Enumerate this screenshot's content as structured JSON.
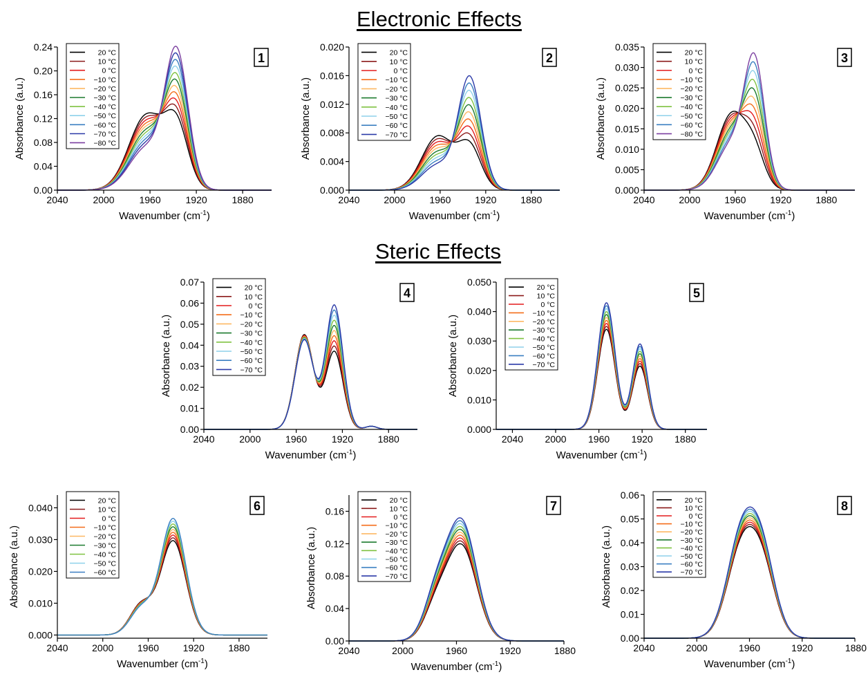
{
  "sections": {
    "electronic": "Electronic Effects",
    "steric": "Steric Effects"
  },
  "temperature_colors": {
    "20 °C": "#000000",
    "10 °C": "#8b1a1a",
    "0 °C": "#e31a1c",
    "−10 °C": "#f46d1a",
    "−20 °C": "#fdb863",
    "−30 °C": "#1b7a2e",
    "−40 °C": "#7fc241",
    "−50 °C": "#8ed1ea",
    "−60 °C": "#3a7fc1",
    "−70 °C": "#2b3aa8",
    "−80 °C": "#7b3fa0"
  },
  "chart_data": [
    {
      "id": "1",
      "type": "line",
      "panel_label": "1",
      "xlabel": "Wavenumber (cm",
      "xlabel_sup": "-1",
      "ylabel": "Absorbance (a.u.)",
      "xlim": [
        2040,
        1855
      ],
      "ylim": [
        0,
        0.24
      ],
      "xticks": [
        2040,
        2000,
        1960,
        1920,
        1880
      ],
      "xtick_labels": [
        "2040",
        "2000",
        "1960",
        "1920",
        "1880"
      ],
      "yticks": [
        0,
        0.04,
        0.08,
        0.12,
        0.16,
        0.2,
        0.24
      ],
      "ytick_labels": [
        "0.00",
        "0.04",
        "0.08",
        "0.12",
        "0.16",
        "0.20",
        "0.24"
      ],
      "series_names": [
        "20 °C",
        "10 °C",
        "0 °C",
        "−10 °C",
        "−20 °C",
        "−30 °C",
        "−40 °C",
        "−50 °C",
        "−60 °C",
        "−70 °C",
        "−80 °C"
      ],
      "peaks": [
        {
          "center": 1963,
          "width": 15,
          "from": 0.125,
          "to": 0.07
        },
        {
          "center": 1937,
          "width": 10,
          "from": 0.1,
          "to": 0.225
        }
      ]
    },
    {
      "id": "2",
      "type": "line",
      "panel_label": "2",
      "xlabel": "Wavenumber (cm",
      "xlabel_sup": "-1",
      "ylabel": "Absorbance (a.u.)",
      "xlim": [
        2040,
        1855
      ],
      "ylim": [
        0,
        0.02
      ],
      "xticks": [
        2040,
        2000,
        1960,
        1920,
        1880
      ],
      "xtick_labels": [
        "2040",
        "2000",
        "1960",
        "1920",
        "1880"
      ],
      "yticks": [
        0,
        0.004,
        0.008,
        0.012,
        0.016,
        0.02
      ],
      "ytick_labels": [
        "0.000",
        "0.004",
        "0.008",
        "0.012",
        "0.016",
        "0.020"
      ],
      "series_names": [
        "20 °C",
        "10 °C",
        "0 °C",
        "−10 °C",
        "−20 °C",
        "−30 °C",
        "−40 °C",
        "−50 °C",
        "−60 °C",
        "−70 °C"
      ],
      "peaks": [
        {
          "center": 1962,
          "width": 14,
          "from": 0.0075,
          "to": 0.0035
        },
        {
          "center": 1934,
          "width": 10,
          "from": 0.0058,
          "to": 0.0155
        }
      ]
    },
    {
      "id": "3",
      "type": "line",
      "panel_label": "3",
      "xlabel": "Wavenumber (cm",
      "xlabel_sup": "-1",
      "ylabel": "Absorbance (a.u.)",
      "xlim": [
        2040,
        1855
      ],
      "ylim": [
        0,
        0.035
      ],
      "xticks": [
        2040,
        2000,
        1960,
        1920,
        1880
      ],
      "xtick_labels": [
        "2040",
        "2000",
        "1960",
        "1920",
        "1880"
      ],
      "yticks": [
        0,
        0.005,
        0.01,
        0.015,
        0.02,
        0.025,
        0.03,
        0.035
      ],
      "ytick_labels": [
        "0.000",
        "0.005",
        "0.010",
        "0.015",
        "0.020",
        "0.025",
        "0.030",
        "0.035"
      ],
      "series_names": [
        "20 °C",
        "10 °C",
        "0 °C",
        "−10 °C",
        "−20 °C",
        "−30 °C",
        "−40 °C",
        "−50 °C",
        "−60 °C",
        "−80 °C"
      ],
      "peaks": [
        {
          "center": 1963,
          "width": 13,
          "from": 0.0185,
          "to": 0.011
        },
        {
          "center": 1943,
          "width": 9,
          "from": 0.0075,
          "to": 0.03
        }
      ]
    },
    {
      "id": "4",
      "type": "line",
      "panel_label": "4",
      "xlabel": "Wavenumber (cm",
      "xlabel_sup": "-1",
      "ylabel": "Absorbance (a.u.)",
      "xlim": [
        2040,
        1855
      ],
      "ylim": [
        0,
        0.07
      ],
      "xticks": [
        2040,
        2000,
        1960,
        1920,
        1880
      ],
      "xtick_labels": [
        "2040",
        "2000",
        "1960",
        "1920",
        "1880"
      ],
      "yticks": [
        0,
        0.01,
        0.02,
        0.03,
        0.04,
        0.05,
        0.06,
        0.07
      ],
      "ytick_labels": [
        "0.00",
        "0.01",
        "0.02",
        "0.03",
        "0.04",
        "0.05",
        "0.06",
        "0.07"
      ],
      "series_names": [
        "20 °C",
        "10 °C",
        "0 °C",
        "−10 °C",
        "−20 °C",
        "−30 °C",
        "−40 °C",
        "−50 °C",
        "−60 °C",
        "−70 °C"
      ],
      "peaks": [
        {
          "center": 1953,
          "width": 8,
          "from": 0.045,
          "to": 0.0425
        },
        {
          "center": 1927,
          "width": 7.5,
          "from": 0.037,
          "to": 0.059
        },
        {
          "center": 1895,
          "width": 5,
          "from": 0.0015,
          "to": 0.0015
        }
      ]
    },
    {
      "id": "5",
      "type": "line",
      "panel_label": "5",
      "xlabel": "Wavenumber (cm",
      "xlabel_sup": "-1",
      "ylabel": "Absorbance (a.u.)",
      "xlim": [
        2055,
        1860
      ],
      "ylim": [
        0,
        0.05
      ],
      "xticks": [
        2040,
        2000,
        1960,
        1920,
        1880
      ],
      "xtick_labels": [
        "2040",
        "2000",
        "1960",
        "1920",
        "1880"
      ],
      "yticks": [
        0,
        0.01,
        0.02,
        0.03,
        0.04,
        0.05
      ],
      "ytick_labels": [
        "0.000",
        "0.010",
        "0.020",
        "0.030",
        "0.040",
        "0.050"
      ],
      "series_names": [
        "20 °C",
        "10 °C",
        "0 °C",
        "−10 °C",
        "−20 °C",
        "−30 °C",
        "−40 °C",
        "−50 °C",
        "−60 °C",
        "−70 °C"
      ],
      "peaks": [
        {
          "center": 1953,
          "width": 8,
          "from": 0.034,
          "to": 0.043
        },
        {
          "center": 1922,
          "width": 7,
          "from": 0.0215,
          "to": 0.029
        }
      ]
    },
    {
      "id": "6",
      "type": "line",
      "panel_label": "6",
      "xlabel": "Wavenumber (cm",
      "xlabel_sup": "-1",
      "ylabel": "Absorbance (a.u.)",
      "xlim": [
        2040,
        1855
      ],
      "ylim": [
        -0.001,
        0.044
      ],
      "xticks": [
        2040,
        2000,
        1960,
        1920,
        1880
      ],
      "xtick_labels": [
        "2040",
        "2000",
        "1960",
        "1920",
        "1880"
      ],
      "yticks": [
        0,
        0.01,
        0.02,
        0.03,
        0.04
      ],
      "ytick_labels": [
        "0.000",
        "0.010",
        "0.020",
        "0.030",
        "0.040"
      ],
      "series_names": [
        "20 °C",
        "10 °C",
        "0 °C",
        "−10 °C",
        "−20 °C",
        "−30 °C",
        "−40 °C",
        "−50 °C",
        "−60 °C"
      ],
      "peaks": [
        {
          "center": 1966,
          "width": 10,
          "from": 0.0095,
          "to": 0.0082
        },
        {
          "center": 1938,
          "width": 11,
          "from": 0.0295,
          "to": 0.0365
        }
      ]
    },
    {
      "id": "7",
      "type": "line",
      "panel_label": "7",
      "xlabel": "Wavenumber (cm",
      "xlabel_sup": "-1",
      "ylabel": "Absorbance (a.u.)",
      "xlim": [
        2040,
        1880
      ],
      "ylim": [
        0,
        0.18
      ],
      "xticks": [
        2040,
        2000,
        1960,
        1920,
        1880
      ],
      "xtick_labels": [
        "2040",
        "2000",
        "1960",
        "1920",
        "1880"
      ],
      "yticks": [
        0,
        0.04,
        0.08,
        0.12,
        0.16
      ],
      "ytick_labels": [
        "0.00",
        "0.04",
        "0.08",
        "0.12",
        "0.16"
      ],
      "series_names": [
        "20 °C",
        "10 °C",
        "0 °C",
        "−10 °C",
        "−20 °C",
        "−30 °C",
        "−40 °C",
        "−50 °C",
        "−60 °C",
        "−70 °C"
      ],
      "peaks": [
        {
          "center": 1975,
          "width": 9,
          "from": 0.04,
          "to": 0.055
        },
        {
          "center": 1956,
          "width": 11,
          "from": 0.115,
          "to": 0.145
        }
      ]
    },
    {
      "id": "8",
      "type": "line",
      "panel_label": "8",
      "xlabel": "Wavenumber (cm",
      "xlabel_sup": "-1",
      "ylabel": "Absorbance (a.u.)",
      "xlim": [
        2040,
        1880
      ],
      "ylim": [
        0,
        0.06
      ],
      "xticks": [
        2040,
        2000,
        1960,
        1920,
        1880
      ],
      "xtick_labels": [
        "2040",
        "2000",
        "1960",
        "1920",
        "1880"
      ],
      "yticks": [
        0,
        0.01,
        0.02,
        0.03,
        0.04,
        0.05,
        0.06
      ],
      "ytick_labels": [
        "0.00",
        "0.01",
        "0.02",
        "0.03",
        "0.04",
        "0.05",
        "0.06"
      ],
      "series_names": [
        "20 °C",
        "10 °C",
        "0 °C",
        "−10 °C",
        "−20 °C",
        "−30 °C",
        "−40 °C",
        "−50 °C",
        "−60 °C",
        "−70 °C"
      ],
      "peaks": [
        {
          "center": 1966,
          "width": 11,
          "from": 0.036,
          "to": 0.042
        },
        {
          "center": 1950,
          "width": 10,
          "from": 0.026,
          "to": 0.031
        }
      ]
    }
  ]
}
